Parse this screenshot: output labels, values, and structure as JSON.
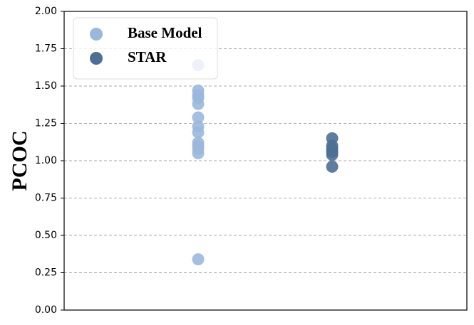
{
  "chart_data": {
    "type": "scatter",
    "y_label": "PCOC",
    "series": [
      {
        "name": "Base Model",
        "color": "#9ab8dc",
        "values": [
          1.64,
          1.47,
          1.44,
          1.42,
          1.38,
          1.29,
          1.23,
          1.19,
          1.12,
          1.1,
          1.08,
          1.05,
          0.34
        ]
      },
      {
        "name": "STAR",
        "color": "#4e6f94",
        "values": [
          1.15,
          1.1,
          1.08,
          1.06,
          1.04,
          0.96
        ]
      }
    ],
    "ylim": [
      0,
      2
    ],
    "yticks": [
      {
        "value": 0,
        "label": "0.00"
      },
      {
        "value": 0.25,
        "label": "0.25"
      },
      {
        "value": 0.5,
        "label": "0.50"
      },
      {
        "value": 0.75,
        "label": "0.75"
      },
      {
        "value": 1,
        "label": "1.00"
      },
      {
        "value": 1.25,
        "label": "1.25"
      },
      {
        "value": 1.5,
        "label": "1.50"
      },
      {
        "value": 1.75,
        "label": "1.75"
      },
      {
        "value": 2,
        "label": "2.00"
      }
    ],
    "grid": true,
    "legend": "upper-left"
  }
}
